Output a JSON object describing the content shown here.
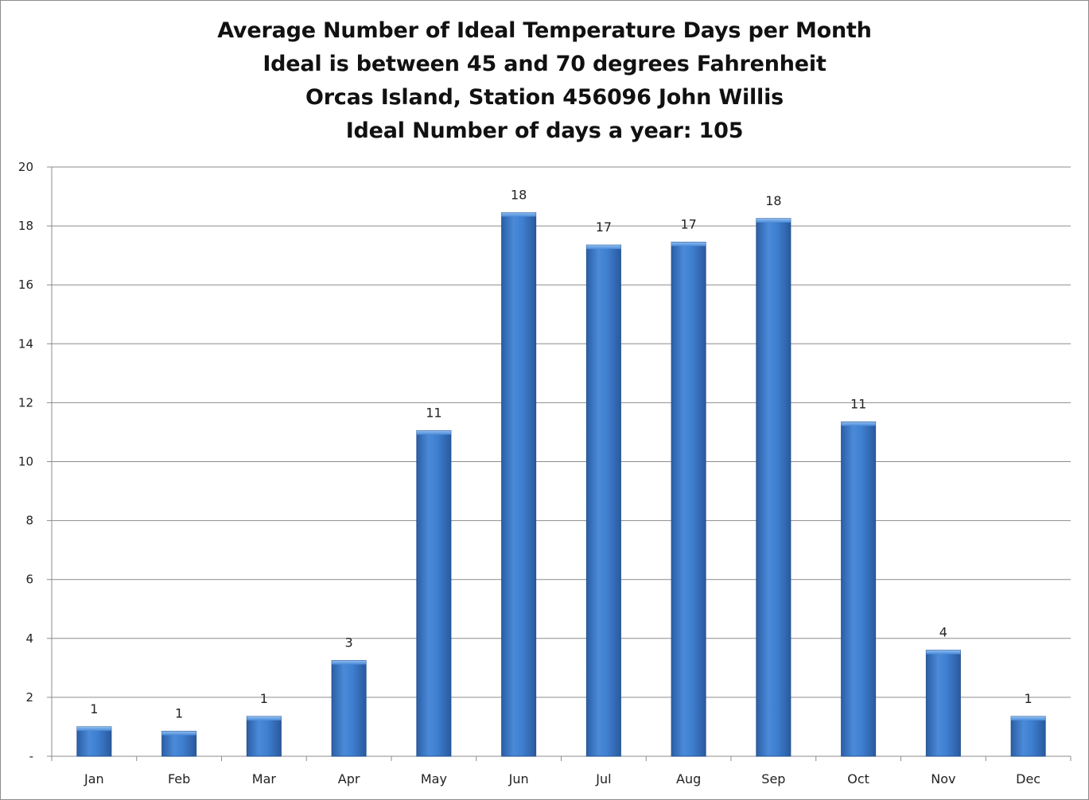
{
  "chart_data": {
    "type": "bar",
    "title_lines": [
      "Average Number of Ideal Temperature Days per Month",
      "Ideal is between 45 and 70 degrees Fahrenheit",
      "Orcas Island, Station 456096 John Willis",
      "Ideal Number of days a year: 105"
    ],
    "categories": [
      "Jan",
      "Feb",
      "Mar",
      "Apr",
      "May",
      "Jun",
      "Jul",
      "Aug",
      "Sep",
      "Oct",
      "Nov",
      "Dec"
    ],
    "values": [
      1.0,
      0.85,
      1.35,
      3.25,
      11.05,
      18.45,
      17.35,
      17.45,
      18.25,
      11.35,
      3.6,
      1.35
    ],
    "data_labels": [
      "1",
      "1",
      "1",
      "3",
      "11",
      "18",
      "17",
      "17",
      "18",
      "11",
      "4",
      "1"
    ],
    "y_ticks": [
      {
        "value": 0,
        "label": "-"
      },
      {
        "value": 2,
        "label": "2"
      },
      {
        "value": 4,
        "label": "4"
      },
      {
        "value": 6,
        "label": "6"
      },
      {
        "value": 8,
        "label": "8"
      },
      {
        "value": 10,
        "label": "10"
      },
      {
        "value": 12,
        "label": "12"
      },
      {
        "value": 14,
        "label": "14"
      },
      {
        "value": 16,
        "label": "16"
      },
      {
        "value": 18,
        "label": "18"
      },
      {
        "value": 20,
        "label": "20"
      }
    ],
    "ylim": [
      0,
      20
    ],
    "grid": true,
    "legend": "none",
    "xlabel": "",
    "ylabel": "",
    "colors": {
      "bar": "#3f7fd0",
      "bar_dark": "#2b5fa6",
      "bar_light": "#6aa3e6",
      "grid": "#8c8c8c"
    }
  }
}
